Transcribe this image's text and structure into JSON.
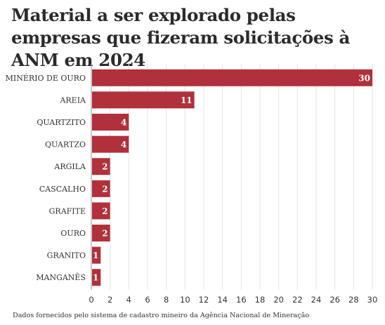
{
  "chart_data": {
    "type": "bar",
    "orientation": "horizontal",
    "title": "Material a ser explorado pelas empresas que fizeram solicitações à ANM em 2024",
    "categories": [
      "MINÉRIO DE OURO",
      "AREIA",
      "QUARTZITO",
      "QUARTZO",
      "ARGILA",
      "CASCALHO",
      "GRAFITE",
      "OURO",
      "GRANITO",
      "MANGANÊS"
    ],
    "values": [
      30,
      11,
      4,
      4,
      2,
      2,
      2,
      2,
      1,
      1
    ],
    "xlim": [
      0,
      30
    ],
    "xticks": [
      0,
      2,
      4,
      6,
      8,
      10,
      12,
      14,
      16,
      18,
      20,
      22,
      24,
      26,
      28,
      30
    ],
    "xlabel": "",
    "ylabel": "",
    "grid": true,
    "bar_color": "#b0313b",
    "footnote": "Dados fornecidos pelo sistema de cadastro mineiro da Agência Nacional de Mineração"
  }
}
